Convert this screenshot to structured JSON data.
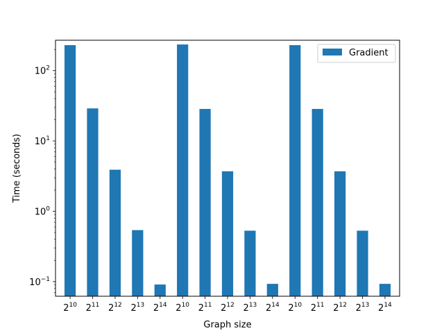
{
  "chart_data": {
    "type": "bar",
    "title": "",
    "xlabel": "Graph size",
    "ylabel": "Time (seconds)",
    "yscale": "log",
    "ylim": [
      0.062,
      270
    ],
    "y_ticks": [
      {
        "value": 0.1,
        "base": "10",
        "exp": "−1"
      },
      {
        "value": 1,
        "base": "10",
        "exp": "0"
      },
      {
        "value": 10,
        "base": "10",
        "exp": "1"
      },
      {
        "value": 100,
        "base": "10",
        "exp": "2"
      }
    ],
    "categories": [
      {
        "base": "2",
        "exp": "10"
      },
      {
        "base": "2",
        "exp": "11"
      },
      {
        "base": "2",
        "exp": "12"
      },
      {
        "base": "2",
        "exp": "13"
      },
      {
        "base": "2",
        "exp": "14"
      },
      {
        "base": "2",
        "exp": "10"
      },
      {
        "base": "2",
        "exp": "11"
      },
      {
        "base": "2",
        "exp": "12"
      },
      {
        "base": "2",
        "exp": "13"
      },
      {
        "base": "2",
        "exp": "14"
      },
      {
        "base": "2",
        "exp": "10"
      },
      {
        "base": "2",
        "exp": "11"
      },
      {
        "base": "2",
        "exp": "12"
      },
      {
        "base": "2",
        "exp": "13"
      },
      {
        "base": "2",
        "exp": "14"
      }
    ],
    "series": [
      {
        "name": "Gradient",
        "color": "#1f77b4",
        "values": [
          230,
          29,
          3.9,
          0.54,
          0.091,
          235,
          28.5,
          3.7,
          0.53,
          0.093,
          230,
          28.5,
          3.7,
          0.53,
          0.093
        ]
      }
    ],
    "legend": "top-right",
    "grid": false
  }
}
